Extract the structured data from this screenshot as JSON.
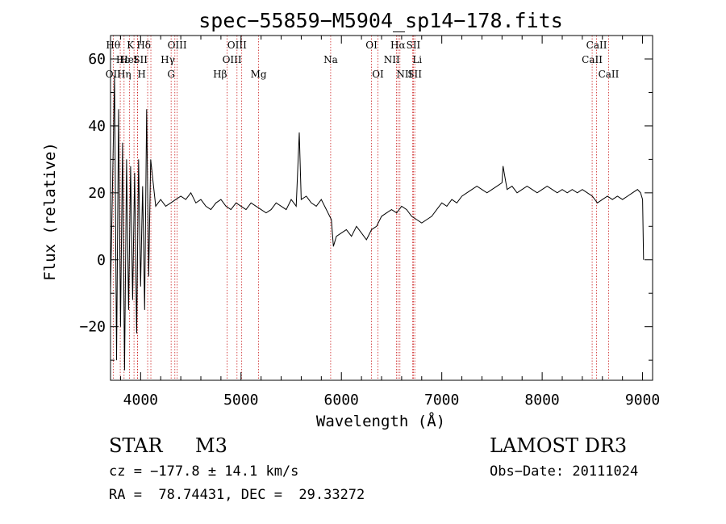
{
  "chart_data": {
    "type": "line",
    "title": "spec−55859−M5904_sp14−178.fits",
    "xlabel": "Wavelength (Å)",
    "ylabel": "Flux (relative)",
    "xlim": [
      3700,
      9100
    ],
    "ylim": [
      -36,
      67
    ],
    "xticks": [
      4000,
      5000,
      6000,
      7000,
      8000,
      9000
    ],
    "yticks": [
      -20,
      0,
      20,
      40,
      60
    ],
    "ytick_labels": [
      "−20",
      "0",
      "20",
      "40",
      "60"
    ],
    "series": [
      {
        "name": "flux",
        "x": [
          3700,
          3740,
          3760,
          3780,
          3800,
          3820,
          3840,
          3860,
          3880,
          3900,
          3920,
          3940,
          3960,
          3980,
          4000,
          4020,
          4040,
          4060,
          4080,
          4100,
          4150,
          4200,
          4250,
          4300,
          4350,
          4400,
          4450,
          4500,
          4550,
          4600,
          4650,
          4700,
          4750,
          4800,
          4850,
          4900,
          4950,
          5000,
          5050,
          5100,
          5150,
          5200,
          5250,
          5300,
          5350,
          5400,
          5450,
          5500,
          5550,
          5580,
          5600,
          5650,
          5700,
          5750,
          5800,
          5850,
          5900,
          5920,
          5950,
          6000,
          6050,
          6100,
          6150,
          6200,
          6250,
          6300,
          6350,
          6400,
          6450,
          6500,
          6550,
          6600,
          6650,
          6700,
          6750,
          6800,
          6850,
          6900,
          6950,
          7000,
          7050,
          7100,
          7150,
          7200,
          7250,
          7300,
          7350,
          7400,
          7450,
          7500,
          7550,
          7600,
          7610,
          7650,
          7700,
          7750,
          7800,
          7850,
          7900,
          7950,
          8000,
          8050,
          8100,
          8150,
          8200,
          8250,
          8300,
          8350,
          8400,
          8450,
          8500,
          8550,
          8600,
          8650,
          8700,
          8750,
          8800,
          8850,
          8900,
          8950,
          8980,
          9000,
          9010
        ],
        "y": [
          -10,
          55,
          -30,
          45,
          -20,
          35,
          -33,
          30,
          -15,
          28,
          -12,
          26,
          -22,
          30,
          -8,
          22,
          -15,
          45,
          -5,
          30,
          16,
          18,
          16,
          17,
          18,
          19,
          18,
          20,
          17,
          18,
          16,
          15,
          17,
          18,
          16,
          15,
          17,
          16,
          15,
          17,
          16,
          15,
          14,
          15,
          17,
          16,
          15,
          18,
          16,
          38,
          18,
          19,
          17,
          16,
          18,
          15,
          12,
          4,
          7,
          8,
          9,
          7,
          10,
          8,
          6,
          9,
          10,
          13,
          14,
          15,
          14,
          16,
          15,
          13,
          12,
          11,
          12,
          13,
          15,
          17,
          16,
          18,
          17,
          19,
          20,
          21,
          22,
          21,
          20,
          21,
          22,
          23,
          28,
          21,
          22,
          20,
          21,
          22,
          21,
          20,
          21,
          22,
          21,
          20,
          21,
          20,
          21,
          20,
          21,
          20,
          19,
          17,
          18,
          19,
          18,
          19,
          18,
          19,
          20,
          21,
          20,
          18,
          0
        ]
      }
    ],
    "spectral_lines": [
      {
        "label": "Hθ",
        "x": 3797,
        "row": 0,
        "anchor": "end"
      },
      {
        "label": "K",
        "x": 3934,
        "row": 0,
        "anchor": "end"
      },
      {
        "label": "Hδ",
        "x": 4102,
        "row": 0,
        "anchor": "end"
      },
      {
        "label": "OIII",
        "x": 4364,
        "row": 0,
        "anchor": "middle"
      },
      {
        "label": "OIII",
        "x": 4960,
        "row": 0,
        "anchor": "middle"
      },
      {
        "label": "OI",
        "x": 6300,
        "row": 0,
        "anchor": "middle"
      },
      {
        "label": "Hα",
        "x": 6563,
        "row": 0,
        "anchor": "middle"
      },
      {
        "label": "SII",
        "x": 6717,
        "row": 0,
        "anchor": "middle"
      },
      {
        "label": "CaII",
        "x": 8542,
        "row": 0,
        "anchor": "middle"
      },
      {
        "label": "Hε",
        "x": 3889,
        "row": 1,
        "anchor": "end"
      },
      {
        "label": "HeI",
        "x": 3970,
        "row": 1,
        "anchor": "end"
      },
      {
        "label": "SII",
        "x": 4070,
        "row": 1,
        "anchor": "end"
      },
      {
        "label": "Hγ",
        "x": 4341,
        "row": 1,
        "anchor": "end"
      },
      {
        "label": "OIII",
        "x": 5007,
        "row": 1,
        "anchor": "end"
      },
      {
        "label": "Na",
        "x": 5893,
        "row": 1,
        "anchor": "middle"
      },
      {
        "label": "NII",
        "x": 6583,
        "row": 1,
        "anchor": "end"
      },
      {
        "label": "Li",
        "x": 6708,
        "row": 1,
        "anchor": "start"
      },
      {
        "label": "CaII",
        "x": 8498,
        "row": 1,
        "anchor": "middle"
      },
      {
        "label": "OII",
        "x": 3727,
        "row": 2,
        "anchor": "middle"
      },
      {
        "label": "Hη",
        "x": 3835,
        "row": 2,
        "anchor": "middle"
      },
      {
        "label": "H",
        "x": 3968,
        "row": 2,
        "anchor": "start"
      },
      {
        "label": "G",
        "x": 4304,
        "row": 2,
        "anchor": "middle"
      },
      {
        "label": "Hβ",
        "x": 4861,
        "row": 2,
        "anchor": "end"
      },
      {
        "label": "Mg",
        "x": 5175,
        "row": 2,
        "anchor": "middle"
      },
      {
        "label": "OI",
        "x": 6364,
        "row": 2,
        "anchor": "middle"
      },
      {
        "label": "NII",
        "x": 6548,
        "row": 2,
        "anchor": "start"
      },
      {
        "label": "SII",
        "x": 6731,
        "row": 2,
        "anchor": "middle"
      },
      {
        "label": "CaII",
        "x": 8662,
        "row": 2,
        "anchor": "middle"
      }
    ]
  },
  "info": {
    "class": "STAR",
    "subclass": "M3",
    "survey": "LAMOST DR3",
    "cz": "cz = −177.8 ± 14.1 km/s",
    "obs_date": "Obs−Date: 20111024",
    "radec": "RA =  78.74431, DEC =  29.33272"
  },
  "colors": {
    "axis": "#000000",
    "spectrum": "#000000",
    "line_marker": "#cc2222"
  }
}
